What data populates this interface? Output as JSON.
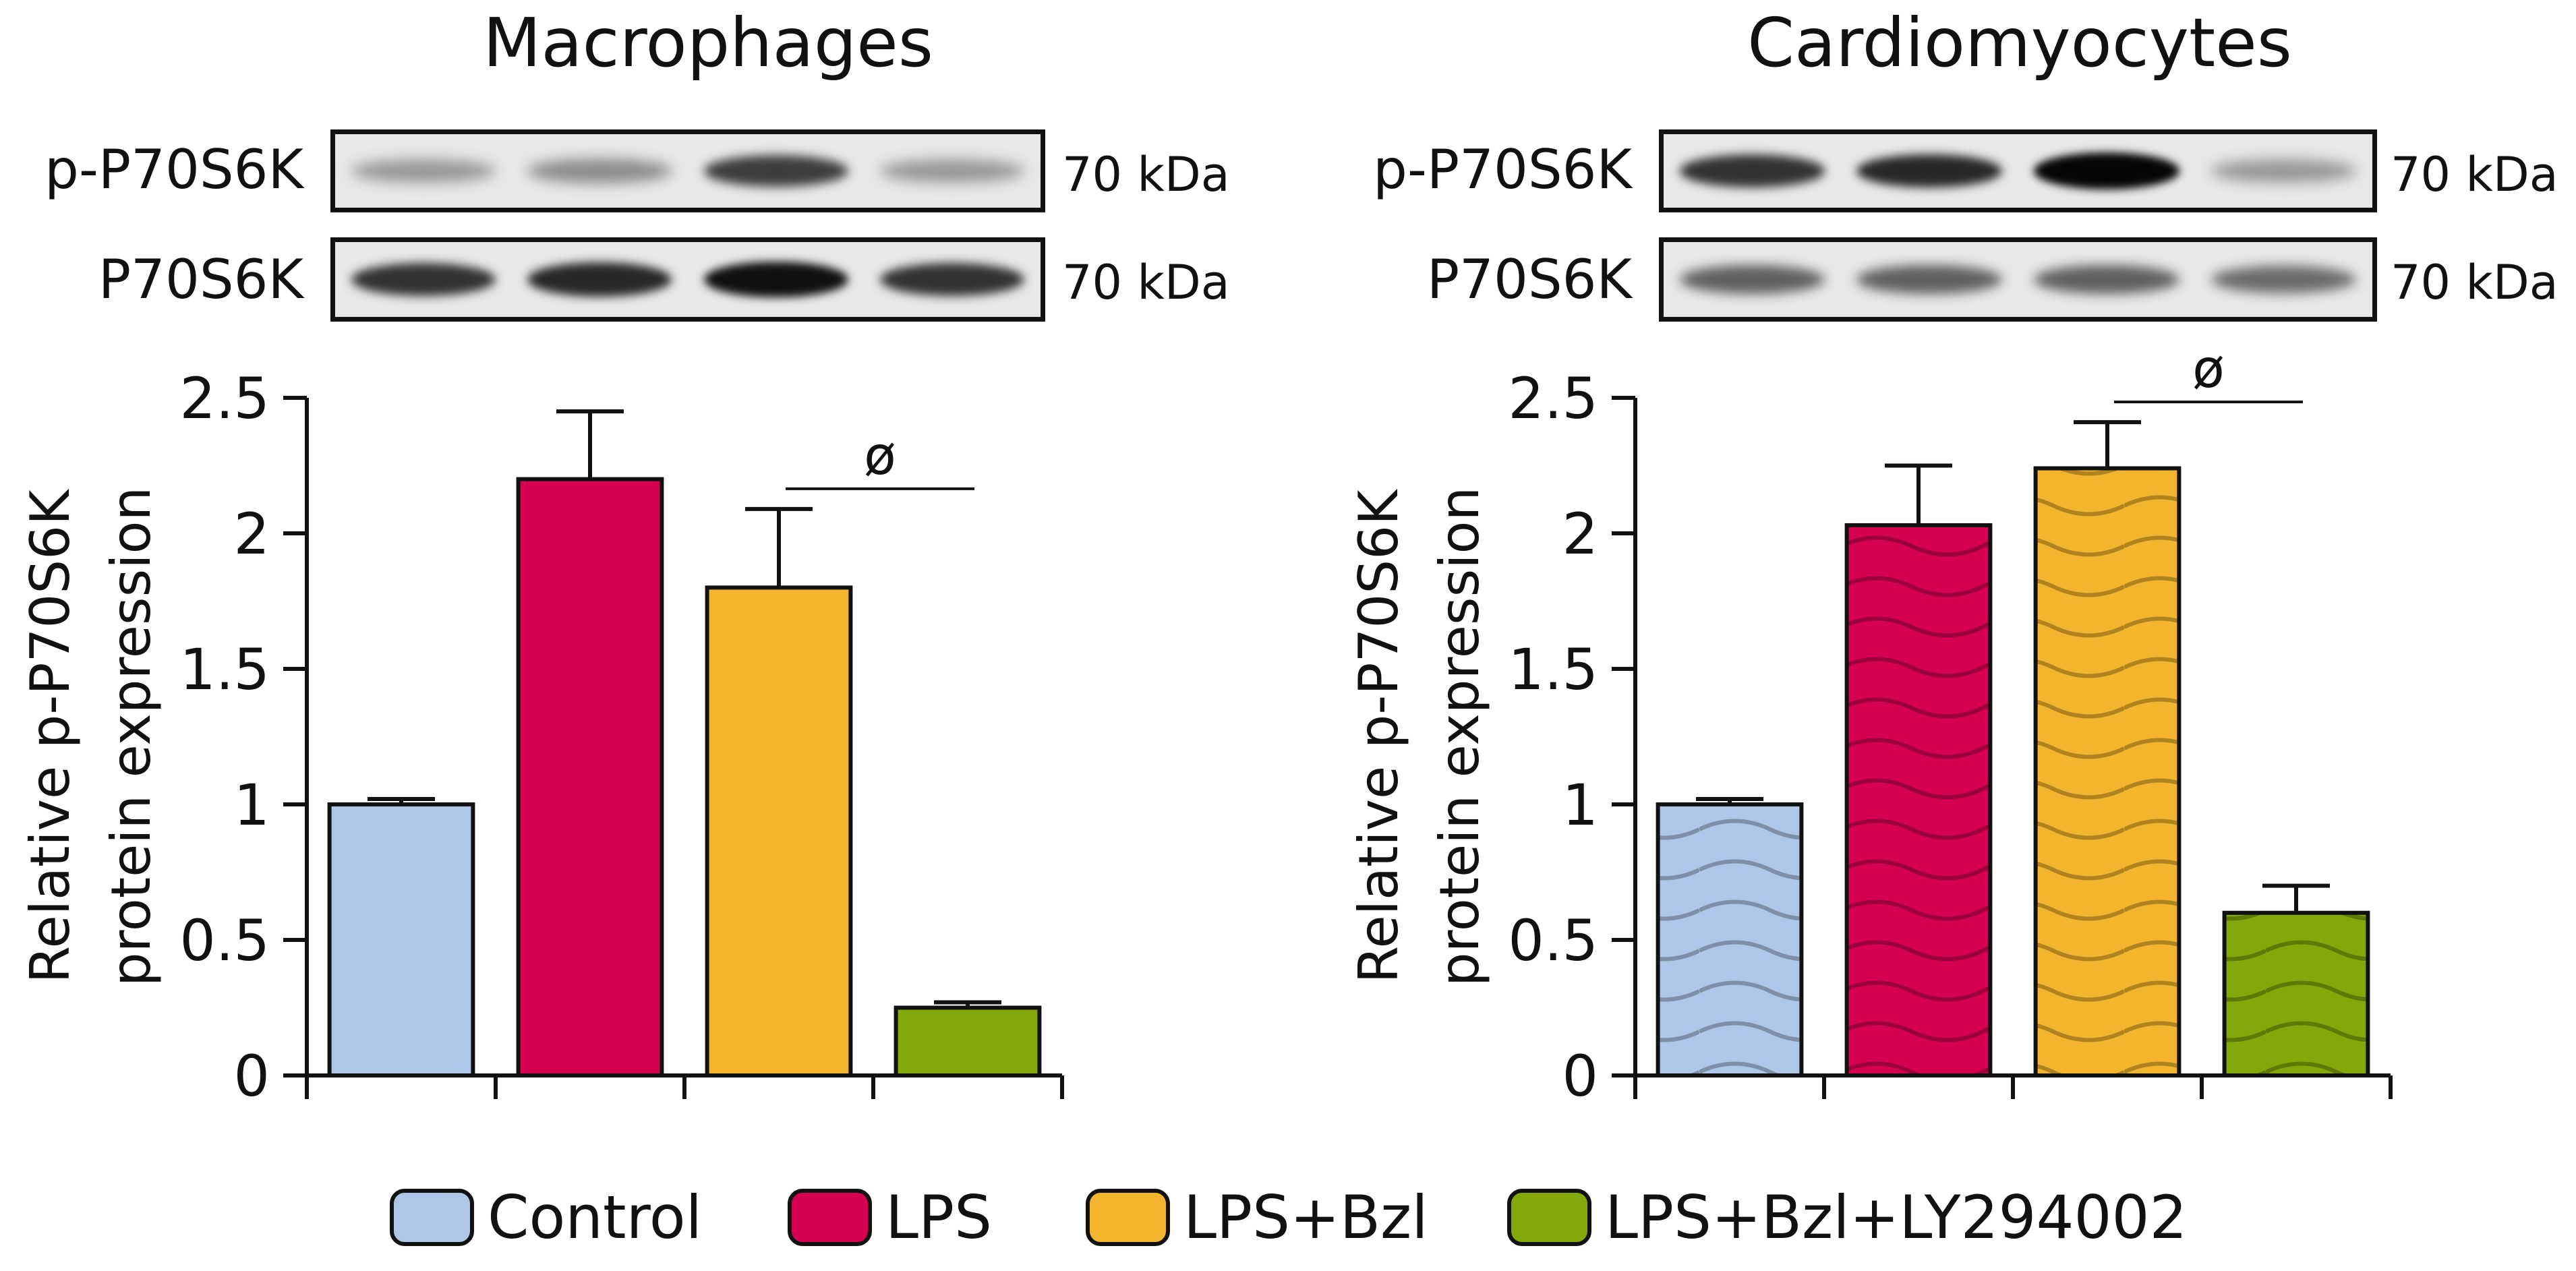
{
  "legend": [
    {
      "label": "Control",
      "color": "#aec6e8"
    },
    {
      "label": "LPS",
      "color": "#d5004f"
    },
    {
      "label": "LPS+Bzl",
      "color": "#f2b52d"
    },
    {
      "label": "LPS+Bzl+LY294002",
      "color": "#82a80a"
    }
  ],
  "blot_rows": [
    {
      "label": "p-P70S6K",
      "size": "70 kDa"
    },
    {
      "label": "P70S6K",
      "size": "70 kDa"
    }
  ],
  "blot_band_intensity": {
    "macrophages": {
      "p-P70S6K": [
        0.35,
        0.4,
        0.75,
        0.35
      ],
      "P70S6K": [
        0.8,
        0.85,
        0.95,
        0.8
      ]
    },
    "cardiomyocytes": {
      "p-P70S6K": [
        0.8,
        0.85,
        1.0,
        0.35
      ],
      "P70S6K": [
        0.6,
        0.6,
        0.6,
        0.55
      ]
    }
  },
  "chart_data": [
    {
      "type": "bar",
      "title": "Macrophages",
      "ylabel_line1": "Relative p-P70S6K",
      "ylabel_line2": "protein expression",
      "categories": [
        "Control",
        "LPS",
        "LPS+Bzl",
        "LPS+Bzl+LY294002"
      ],
      "values": [
        1.0,
        2.2,
        1.8,
        0.25
      ],
      "errors": [
        0.02,
        0.25,
        0.29,
        0.02
      ],
      "colors": [
        "#aec6e8",
        "#d5004f",
        "#f2b52d",
        "#82a80a"
      ],
      "pattern": "none",
      "ylim": [
        0,
        2.5
      ],
      "yticks": [
        "0",
        "0.5",
        "1",
        "1.5",
        "2",
        "2.5"
      ],
      "annotation": {
        "text": "ø",
        "from": 2,
        "to": 3
      }
    },
    {
      "type": "bar",
      "title": "Cardiomyocytes",
      "ylabel_line1": "Relative p-P70S6K",
      "ylabel_line2": "protein expression",
      "categories": [
        "Control",
        "LPS",
        "LPS+Bzl",
        "LPS+Bzl+LY294002"
      ],
      "values": [
        1.0,
        2.03,
        2.24,
        0.6
      ],
      "errors": [
        0.02,
        0.22,
        0.17,
        0.1
      ],
      "colors": [
        "#aec6e8",
        "#d5004f",
        "#f2b52d",
        "#82a80a"
      ],
      "pattern": "wave",
      "ylim": [
        0,
        2.5
      ],
      "yticks": [
        "0",
        "0.5",
        "1",
        "1.5",
        "2",
        "2.5"
      ],
      "annotation": {
        "text": "ø",
        "from": 2,
        "to": 3
      }
    }
  ]
}
